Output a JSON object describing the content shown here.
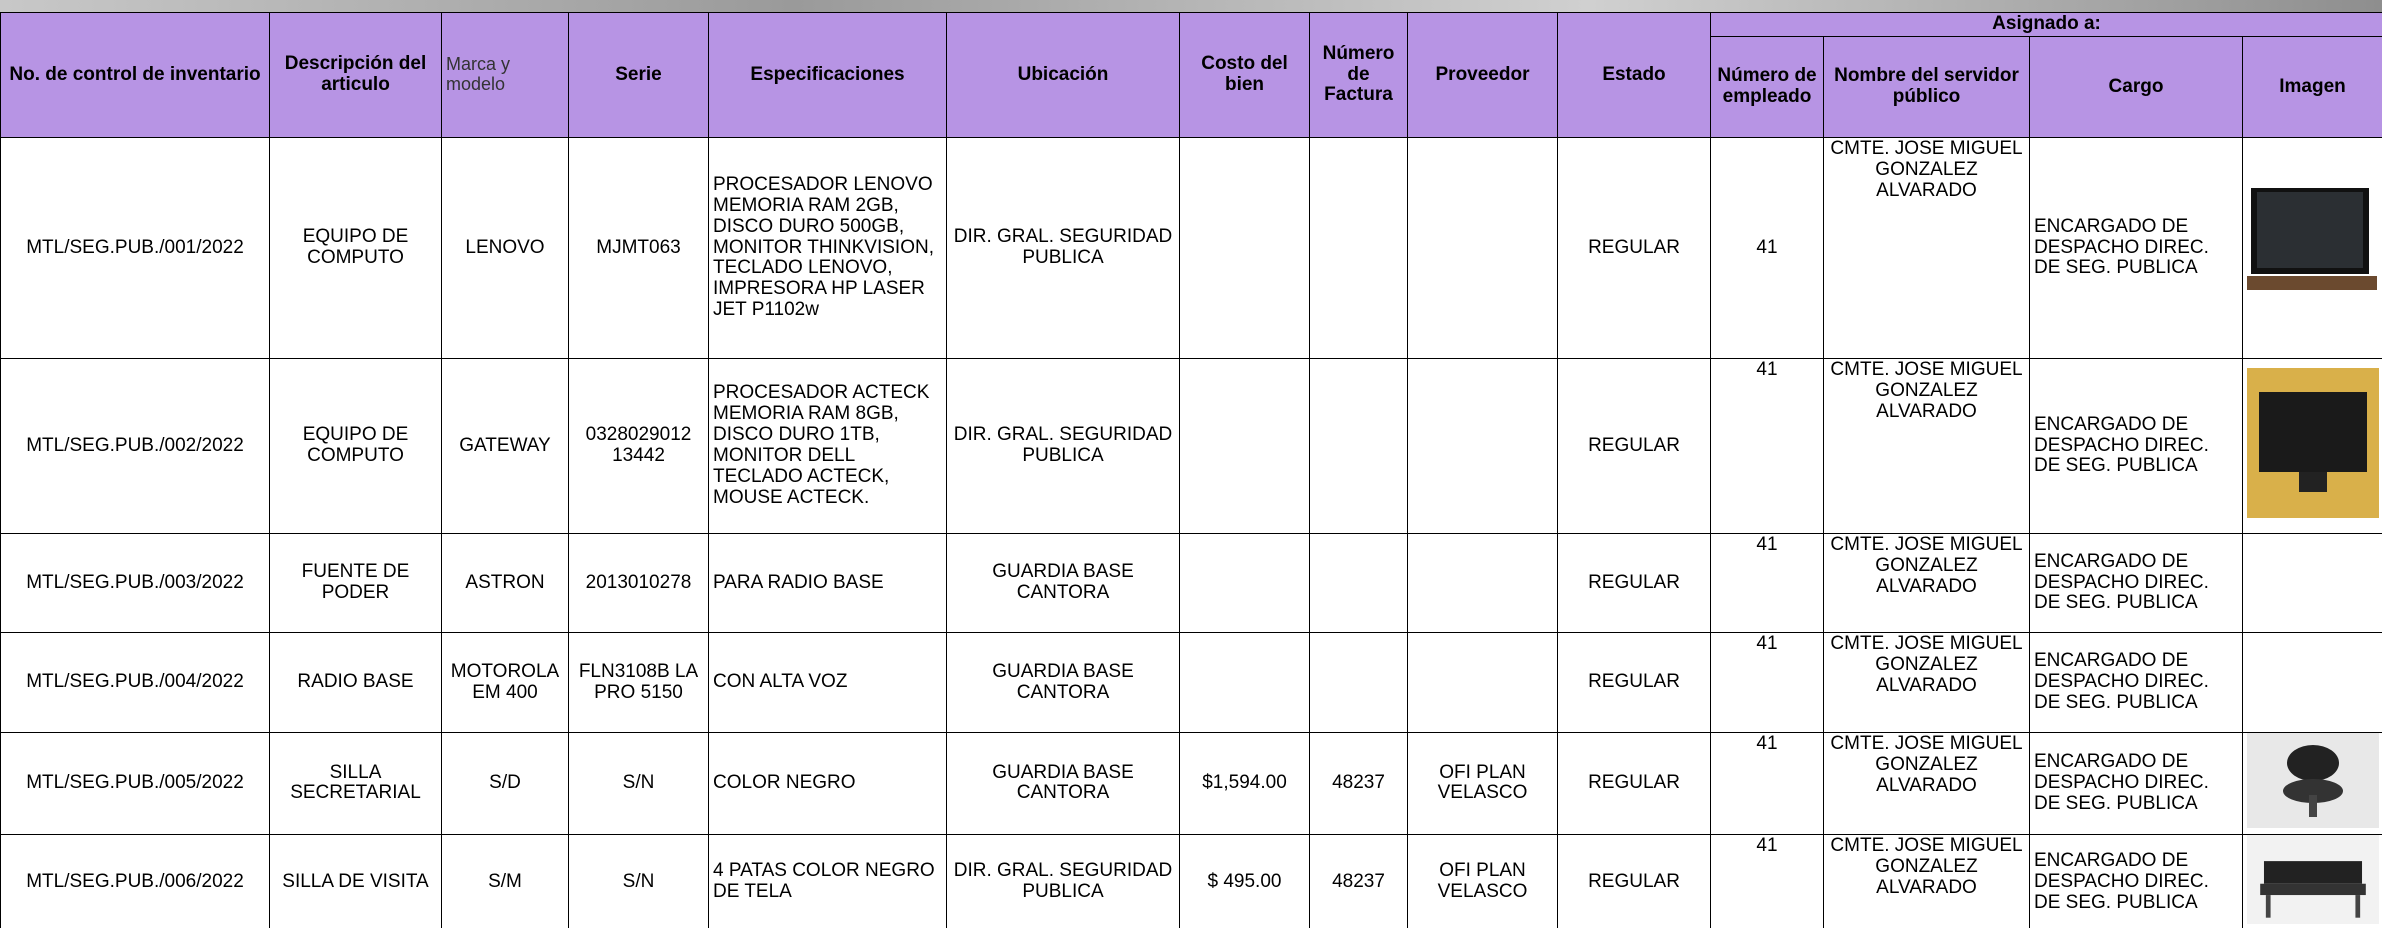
{
  "table": {
    "group_header": "Asignado a:",
    "headers": [
      "No. de control de inventario",
      "Descripción del articulo",
      "Marca y modelo",
      "Serie",
      "Especificaciones",
      "Ubicación",
      "Costo del bien",
      "Número de Factura",
      "Proveedor",
      "Estado",
      "Número de empleado",
      "Nombre del servidor público",
      "Cargo",
      "Imagen"
    ],
    "rows": [
      [
        "MTL/SEG.PUB./001/2022",
        "EQUIPO DE COMPUTO",
        "LENOVO",
        "MJMT063",
        "PROCESADOR LENOVO MEMORIA RAM 2GB, DISCO DURO 500GB, MONITOR THINKVISION, TECLADO LENOVO, IMPRESORA HP LASER JET P1102w",
        "DIR. GRAL. SEGURIDAD PUBLICA",
        null,
        null,
        null,
        "REGULAR",
        "41",
        "CMTE. JOSE MIGUEL GONZALEZ ALVARADO",
        "ENCARGADO DE DESPACHO DIREC. DE SEG. PUBLICA"
      ],
      [
        "MTL/SEG.PUB./002/2022",
        "EQUIPO DE COMPUTO",
        "GATEWAY",
        "0328029012 13442",
        "PROCESADOR ACTECK MEMORIA RAM 8GB, DISCO DURO 1TB, MONITOR DELL TECLADO ACTECK, MOUSE ACTECK.",
        "DIR. GRAL. SEGURIDAD PUBLICA",
        null,
        null,
        null,
        "REGULAR",
        "41",
        "CMTE. JOSE MIGUEL GONZALEZ ALVARADO",
        "ENCARGADO DE DESPACHO DIREC. DE SEG. PUBLICA"
      ],
      [
        "MTL/SEG.PUB./003/2022",
        "FUENTE DE PODER",
        "ASTRON",
        "2013010278",
        "PARA RADIO BASE",
        "GUARDIA BASE CANTORA",
        null,
        null,
        null,
        "REGULAR",
        "41",
        "CMTE. JOSE MIGUEL GONZALEZ ALVARADO",
        "ENCARGADO DE DESPACHO DIREC. DE SEG. PUBLICA"
      ],
      [
        "MTL/SEG.PUB./004/2022",
        "RADIO BASE",
        "MOTOROLA EM 400",
        "FLN3108B LA PRO 5150",
        "CON ALTA VOZ",
        "GUARDIA BASE CANTORA",
        null,
        null,
        null,
        "REGULAR",
        "41",
        "CMTE. JOSE MIGUEL GONZALEZ ALVARADO",
        "ENCARGADO DE DESPACHO DIREC. DE SEG. PUBLICA"
      ],
      [
        "MTL/SEG.PUB./005/2022",
        "SILLA SECRETARIAL",
        "S/D",
        "S/N",
        "COLOR NEGRO",
        "GUARDIA BASE CANTORA",
        "$1,594.00",
        "48237",
        "OFI PLAN VELASCO",
        "REGULAR",
        "41",
        "CMTE. JOSE MIGUEL GONZALEZ ALVARADO",
        "ENCARGADO DE DESPACHO DIREC. DE SEG. PUBLICA"
      ],
      [
        "MTL/SEG.PUB./006/2022",
        "SILLA DE VISITA",
        "S/M",
        "S/N",
        "4 PATAS COLOR NEGRO DE TELA",
        "DIR. GRAL. SEGURIDAD PUBLICA",
        "$ 495.00",
        "48237",
        "OFI PLAN VELASCO",
        "REGULAR",
        "41",
        "CMTE. JOSE MIGUEL GONZALEZ ALVARADO",
        "ENCARGADO DE DESPACHO DIREC. DE SEG. PUBLICA"
      ]
    ]
  }
}
